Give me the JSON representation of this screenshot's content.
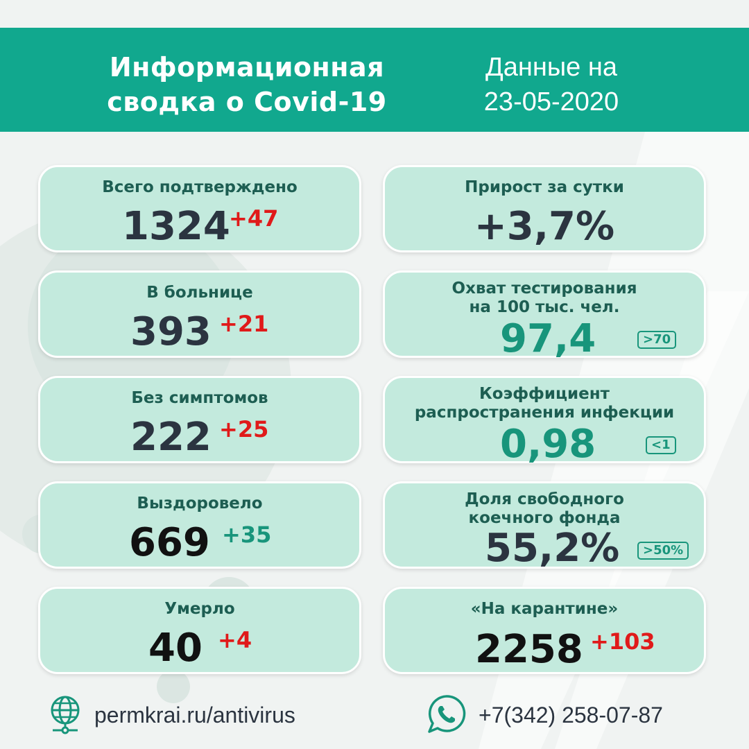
{
  "header": {
    "title_line1": "Информационная",
    "title_line2": "сводка о Covid-19",
    "date_line1": "Данные на",
    "date_line2": "23-05-2020"
  },
  "cards": {
    "confirmed": {
      "label": "Всего подтверждено",
      "value": "1324",
      "delta": "+47"
    },
    "hospital": {
      "label": "В больнице",
      "value": "393",
      "delta": "+21"
    },
    "no_symptoms": {
      "label": "Без симптомов",
      "value": "222",
      "delta": "+25"
    },
    "recovered": {
      "label": "Выздоровело",
      "value": "669",
      "delta": "+35"
    },
    "died": {
      "label": "Умерло",
      "value": "40",
      "delta": "+4"
    },
    "daily_growth": {
      "label": "Прирост за сутки",
      "value": "+3,7%"
    },
    "testing": {
      "label_line1": "Охват тестирования",
      "label_line2": "на 100 тыс. чел.",
      "value": "97,4",
      "threshold": ">70"
    },
    "spread": {
      "label_line1": "Коэффициент",
      "label_line2": "распространения инфекции",
      "value": "0,98",
      "threshold": "<1"
    },
    "beds": {
      "label_line1": "Доля свободного",
      "label_line2": "коечного фонда",
      "value": "55,2%",
      "threshold": ">50%"
    },
    "quarantine": {
      "label": "«На карантине»",
      "value": "2258",
      "delta": "+103"
    }
  },
  "footer": {
    "website": "permkrai.ru/antivirus",
    "website_icon": "globe-icon",
    "phone": "+7(342) 258-07-87",
    "phone_icon": "whatsapp-icon"
  },
  "colors": {
    "header_bg": "#11a88e",
    "card_bg": "#c3eadd",
    "label_text": "#1d5e52",
    "increase_red": "#e01a1a",
    "accent_green": "#18957b"
  }
}
